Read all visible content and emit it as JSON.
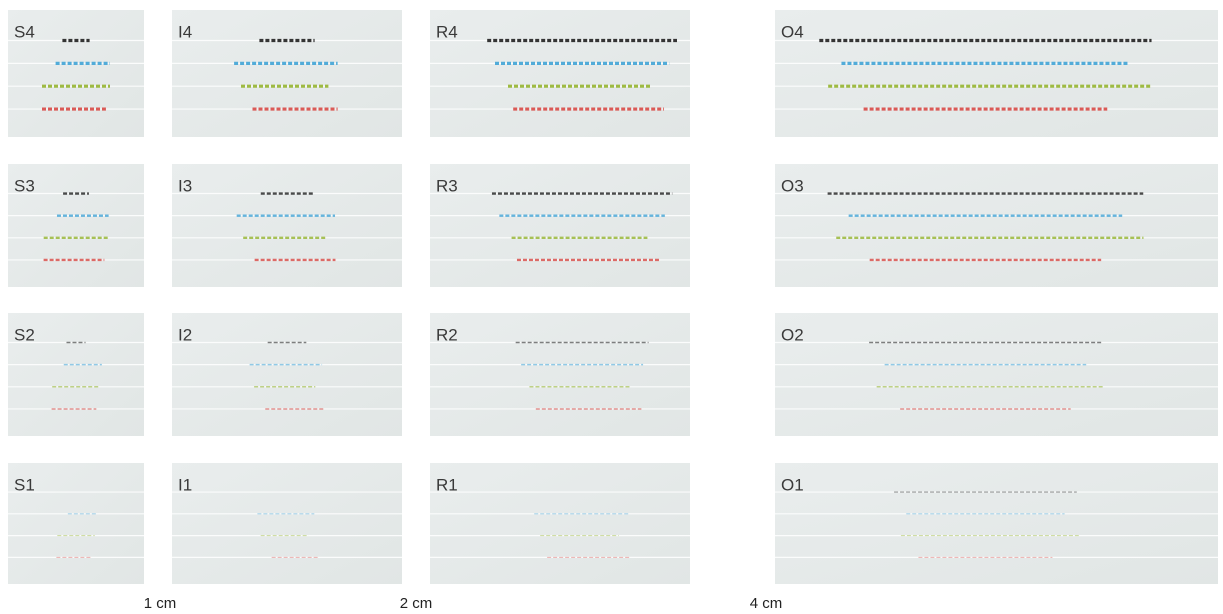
{
  "panels": [
    [
      "S4",
      "I4",
      "R4",
      "O4"
    ],
    [
      "S3",
      "I3",
      "R3",
      "O3"
    ],
    [
      "S2",
      "I2",
      "R2",
      "O2"
    ],
    [
      "S1",
      "I1",
      "R1",
      "O1"
    ]
  ],
  "scale_labels": [
    "1 cm",
    "2 cm",
    "4 cm"
  ]
}
